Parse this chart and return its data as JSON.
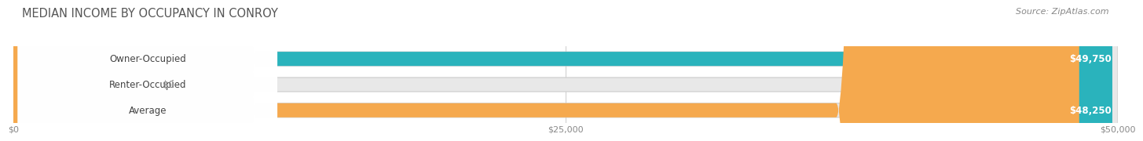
{
  "title": "MEDIAN INCOME BY OCCUPANCY IN CONROY",
  "source": "Source: ZipAtlas.com",
  "categories": [
    "Owner-Occupied",
    "Renter-Occupied",
    "Average"
  ],
  "values": [
    49750,
    0,
    48250
  ],
  "bar_colors": [
    "#2ab3bc",
    "#b89ec4",
    "#f5a94e"
  ],
  "track_color": "#e8e8e8",
  "bar_labels": [
    "$49,750",
    "$0",
    "$48,250"
  ],
  "xlim": [
    0,
    50000
  ],
  "xtick_labels": [
    "$0",
    "$25,000",
    "$50,000"
  ],
  "background_color": "#ffffff",
  "bar_height": 0.55,
  "title_fontsize": 10.5,
  "label_fontsize": 8.5,
  "source_fontsize": 8
}
